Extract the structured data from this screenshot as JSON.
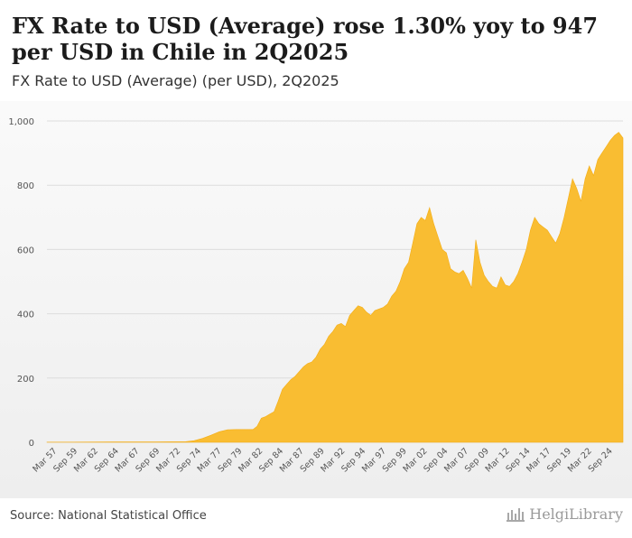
{
  "header": {
    "title": "FX Rate to USD (Average) rose 1.30% yoy to 947 per USD in Chile in 2Q2025",
    "subtitle": "FX Rate to USD (Average) (per USD), 2Q2025"
  },
  "footer": {
    "source": "Source: National Statistical Office",
    "brand": "HelgiLibrary"
  },
  "colors": {
    "area": "#f9bd32",
    "grid": "#dddddd",
    "text": "#555555"
  },
  "chart_data": {
    "type": "area",
    "title": "FX Rate to USD (Average) (per USD), 2Q2025",
    "xlabel": "",
    "ylabel": "",
    "ylim": [
      0,
      1000
    ],
    "x_range": [
      1957.0,
      2025.5
    ],
    "yticks": [
      0,
      200,
      400,
      600,
      800,
      1000
    ],
    "ytick_labels": [
      "0",
      "200",
      "400",
      "600",
      "800",
      "1,000"
    ],
    "xtick_labels": [
      "Mar 57",
      "Sep 59",
      "Mar 62",
      "Sep 64",
      "Mar 67",
      "Sep 69",
      "Mar 72",
      "Sep 74",
      "Mar 77",
      "Sep 79",
      "Mar 82",
      "Sep 84",
      "Mar 87",
      "Sep 89",
      "Mar 92",
      "Sep 94",
      "Mar 97",
      "Sep 99",
      "Mar 02",
      "Sep 04",
      "Mar 07",
      "Sep 09",
      "Mar 12",
      "Sep 14",
      "Mar 17",
      "Sep 19",
      "Mar 22",
      "Sep 24"
    ],
    "grid": true,
    "series": [
      {
        "name": "FX Rate to USD (Average)",
        "x": [
          1957.0,
          1960,
          1965,
          1970,
          1973.5,
          1974.5,
          1975.5,
          1976.5,
          1977.5,
          1978.5,
          1979.5,
          1980.5,
          1981.5,
          1982.0,
          1982.5,
          1983.0,
          1983.5,
          1984.0,
          1984.5,
          1985.0,
          1985.5,
          1986.0,
          1986.5,
          1987.0,
          1987.5,
          1988.0,
          1988.5,
          1989.0,
          1989.5,
          1990.0,
          1990.5,
          1991.0,
          1991.5,
          1992.0,
          1992.5,
          1993.0,
          1993.5,
          1994.0,
          1994.5,
          1995.0,
          1995.5,
          1996.0,
          1996.5,
          1997.0,
          1997.5,
          1998.0,
          1998.5,
          1999.0,
          1999.5,
          2000.0,
          2000.5,
          2001.0,
          2001.5,
          2002.0,
          2002.5,
          2003.0,
          2003.5,
          2004.0,
          2004.5,
          2005.0,
          2005.5,
          2006.0,
          2006.5,
          2007.0,
          2007.5,
          2008.0,
          2008.5,
          2009.0,
          2009.5,
          2010.0,
          2010.5,
          2011.0,
          2011.5,
          2012.0,
          2012.5,
          2013.0,
          2013.5,
          2014.0,
          2014.5,
          2015.0,
          2015.5,
          2016.0,
          2016.5,
          2017.0,
          2017.5,
          2018.0,
          2018.5,
          2019.0,
          2019.5,
          2020.0,
          2020.5,
          2021.0,
          2021.5,
          2022.0,
          2022.5,
          2023.0,
          2023.5,
          2024.0,
          2024.5,
          2025.0,
          2025.5
        ],
        "values": [
          0.5,
          0.5,
          1,
          1,
          2,
          5,
          12,
          22,
          33,
          39,
          40,
          40,
          40,
          50,
          75,
          80,
          88,
          95,
          128,
          165,
          180,
          195,
          205,
          220,
          235,
          245,
          250,
          265,
          290,
          305,
          330,
          345,
          365,
          370,
          360,
          395,
          410,
          425,
          420,
          405,
          395,
          410,
          415,
          420,
          430,
          455,
          470,
          500,
          540,
          560,
          620,
          680,
          700,
          690,
          730,
          680,
          640,
          600,
          590,
          540,
          530,
          525,
          535,
          510,
          480,
          630,
          560,
          520,
          500,
          485,
          480,
          515,
          490,
          485,
          500,
          525,
          560,
          600,
          660,
          700,
          680,
          670,
          660,
          640,
          620,
          650,
          700,
          760,
          820,
          790,
          750,
          820,
          860,
          830,
          880,
          900,
          920,
          940,
          955,
          965,
          947
        ]
      }
    ]
  }
}
